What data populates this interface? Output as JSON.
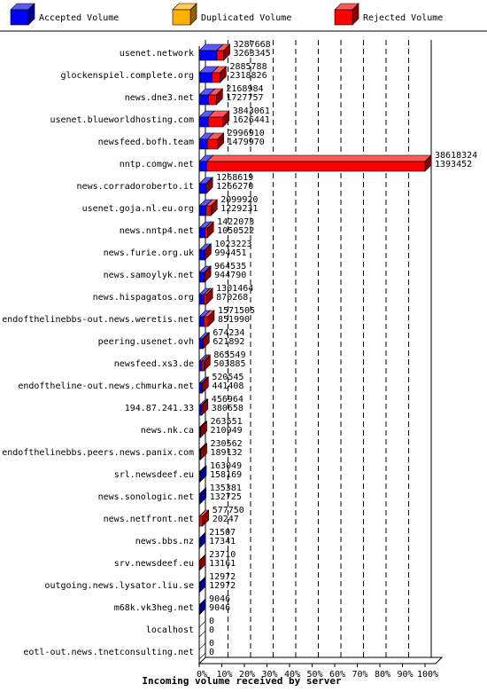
{
  "chart_data": {
    "type": "bar",
    "xlabel": "Incoming volume received by server",
    "xlim": [
      0,
      100
    ],
    "x_ticks": [
      "0%",
      "10%",
      "20%",
      "30%",
      "40%",
      "50%",
      "60%",
      "70%",
      "80%",
      "90%",
      "100%"
    ],
    "legend": {
      "placement": "top",
      "items": [
        {
          "name": "Accepted Volume",
          "color": "#0000ff"
        },
        {
          "name": "Duplicated Volume",
          "color": "#ffb000"
        },
        {
          "name": "Rejected Volume",
          "color": "#ff0000"
        }
      ]
    },
    "grid": true,
    "rows": [
      {
        "server": "usenet.network",
        "value1": "3287668",
        "value2": "3263345",
        "accepted_pct": 7.8,
        "rejected_pct": 3.0
      },
      {
        "server": "glockenspiel.complete.org",
        "value1": "2885788",
        "value2": "2318826",
        "accepted_pct": 5.7,
        "rejected_pct": 3.5
      },
      {
        "server": "news.dne3.net",
        "value1": "2168984",
        "value2": "1727757",
        "accepted_pct": 4.2,
        "rejected_pct": 3.4
      },
      {
        "server": "usenet.blueworldhosting.com",
        "value1": "3843061",
        "value2": "1626441",
        "accepted_pct": 4.0,
        "rejected_pct": 6.5
      },
      {
        "server": "newsfeed.bofh.team",
        "value1": "2996910",
        "value2": "1479970",
        "accepted_pct": 3.6,
        "rejected_pct": 4.5
      },
      {
        "server": "nntp.comgw.net",
        "value1": "38618324",
        "value2": "1393452",
        "accepted_pct": 3.4,
        "rejected_pct": 96.6
      },
      {
        "server": "news.corradoroberto.it",
        "value1": "1268619",
        "value2": "1266270",
        "accepted_pct": 3.1,
        "rejected_pct": 0.1
      },
      {
        "server": "usenet.goja.nl.eu.org",
        "value1": "2099920",
        "value2": "1229231",
        "accepted_pct": 3.0,
        "rejected_pct": 2.2
      },
      {
        "server": "news.nntp4.net",
        "value1": "1422073",
        "value2": "1050522",
        "accepted_pct": 2.6,
        "rejected_pct": 1.0
      },
      {
        "server": "news.furie.org.uk",
        "value1": "1023223",
        "value2": "994451",
        "accepted_pct": 2.4,
        "rejected_pct": 0.1
      },
      {
        "server": "news.samoylyk.net",
        "value1": "964535",
        "value2": "944790",
        "accepted_pct": 2.3,
        "rejected_pct": 0.1
      },
      {
        "server": "news.hispagatos.org",
        "value1": "1301464",
        "value2": "870268",
        "accepted_pct": 2.1,
        "rejected_pct": 1.1
      },
      {
        "server": "endofthelinebbs-out.news.weretis.net",
        "value1": "1571505",
        "value2": "851990",
        "accepted_pct": 2.1,
        "rejected_pct": 1.8
      },
      {
        "server": "peering.usenet.ovh",
        "value1": "674234",
        "value2": "621892",
        "accepted_pct": 1.5,
        "rejected_pct": 0.2
      },
      {
        "server": "newsfeed.xs3.de",
        "value1": "865549",
        "value2": "503885",
        "accepted_pct": 1.2,
        "rejected_pct": 0.9
      },
      {
        "server": "endoftheline-out.news.chmurka.net",
        "value1": "520545",
        "value2": "441408",
        "accepted_pct": 1.1,
        "rejected_pct": 0.2
      },
      {
        "server": "194.87.241.33",
        "value1": "456964",
        "value2": "380658",
        "accepted_pct": 0.9,
        "rejected_pct": 0.2
      },
      {
        "server": "news.nk.ca",
        "value1": "263551",
        "value2": "210949",
        "accepted_pct": 0.5,
        "rejected_pct": 0.1
      },
      {
        "server": "endofthelinebbs.peers.news.panix.com",
        "value1": "230562",
        "value2": "189132",
        "accepted_pct": 0.5,
        "rejected_pct": 0.1
      },
      {
        "server": "srl.newsdeef.eu",
        "value1": "163049",
        "value2": "158169",
        "accepted_pct": 0.4,
        "rejected_pct": 0.0
      },
      {
        "server": "news.sonologic.net",
        "value1": "135381",
        "value2": "132725",
        "accepted_pct": 0.3,
        "rejected_pct": 0.0
      },
      {
        "server": "news.netfront.net",
        "value1": "577750",
        "value2": "20247",
        "accepted_pct": 0.05,
        "rejected_pct": 1.4
      },
      {
        "server": "news.bbs.nz",
        "value1": "21507",
        "value2": "17341",
        "accepted_pct": 0.04,
        "rejected_pct": 0.01
      },
      {
        "server": "srv.newsdeef.eu",
        "value1": "23710",
        "value2": "13161",
        "accepted_pct": 0.03,
        "rejected_pct": 0.03
      },
      {
        "server": "outgoing.news.lysator.liu.se",
        "value1": "12972",
        "value2": "12972",
        "accepted_pct": 0.03,
        "rejected_pct": 0.0
      },
      {
        "server": "m68k.vk3heg.net",
        "value1": "9046",
        "value2": "9046",
        "accepted_pct": 0.02,
        "rejected_pct": 0.0
      },
      {
        "server": "localhost",
        "value1": "0",
        "value2": "0",
        "accepted_pct": 0,
        "rejected_pct": 0
      },
      {
        "server": "eotl-out.news.tnetconsulting.net",
        "value1": "0",
        "value2": "0",
        "accepted_pct": 0,
        "rejected_pct": 0
      }
    ]
  }
}
